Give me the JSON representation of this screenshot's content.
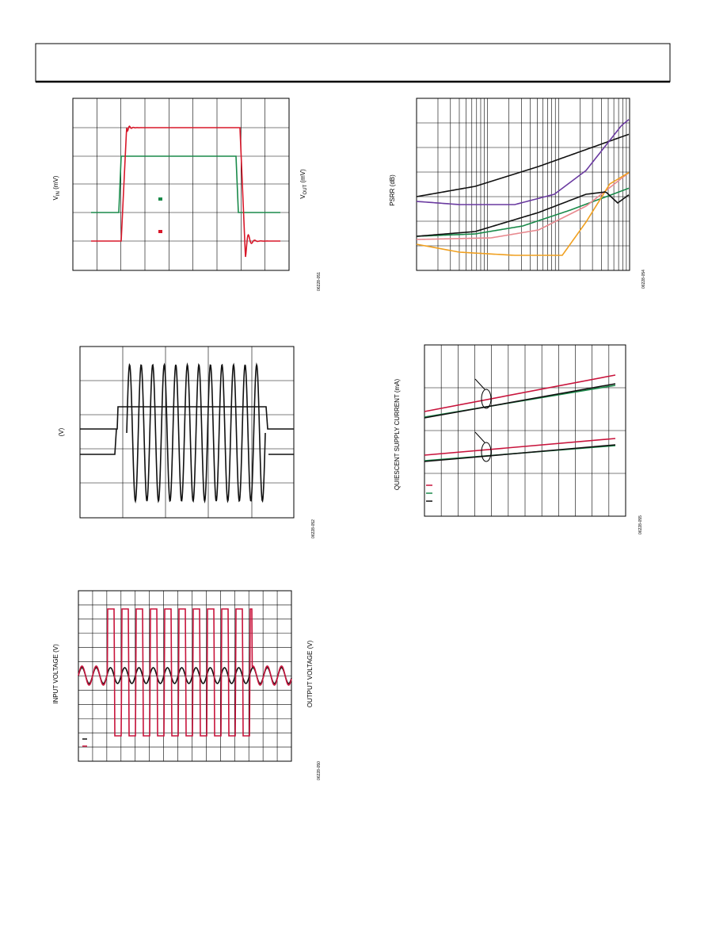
{
  "figures": [
    {
      "ylabel": {
        "main": "V",
        "sub": "IN",
        "unit": " (mV)"
      },
      "y2label": {
        "main": "V",
        "sub": "OUT",
        "unit": " (mV)"
      },
      "code": "06228-051"
    },
    {
      "ylabel": "PSRR (dB)",
      "code": "06228-054"
    },
    {
      "ylabel": "(V)",
      "code": "06228-052"
    },
    {
      "ylabel": "QUIESCENT SUPPLY CURRENT (mA)",
      "code": "06228-055"
    },
    {
      "ylabel": "INPUT VOLTAGE (V)",
      "y2label": "OUTPUT VOLTAGE (V)",
      "code": "06228-050"
    }
  ]
}
